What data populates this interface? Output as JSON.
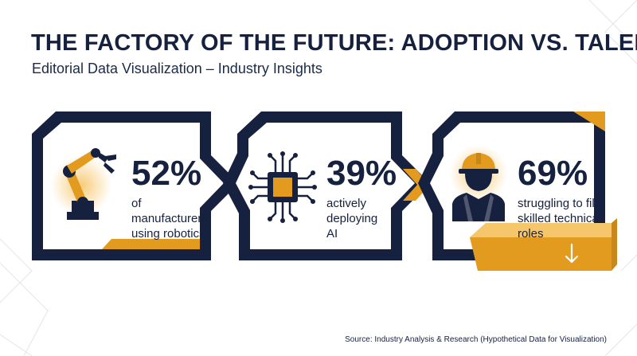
{
  "header": {
    "title": "THE FACTORY OF THE FUTURE: ADOPTION VS. TALENT",
    "subtitle": "Editorial Data Visualization – Industry Insights"
  },
  "cards": [
    {
      "value": "52%",
      "description": "of manufacturers using robotics",
      "icon": "robot-arm-icon"
    },
    {
      "value": "39%",
      "description": "actively deploying AI",
      "icon": "ai-chip-icon"
    },
    {
      "value": "69%",
      "description": "struggling to fill skilled technical roles",
      "icon": "worker-hardhat-icon"
    }
  ],
  "footer": {
    "source": "Source: Industry Analysis & Research (Hypothetical Data for Visualization)"
  },
  "colors": {
    "navy": "#16213f",
    "gold": "#e29a1f",
    "light_gold": "#f6c66a"
  }
}
